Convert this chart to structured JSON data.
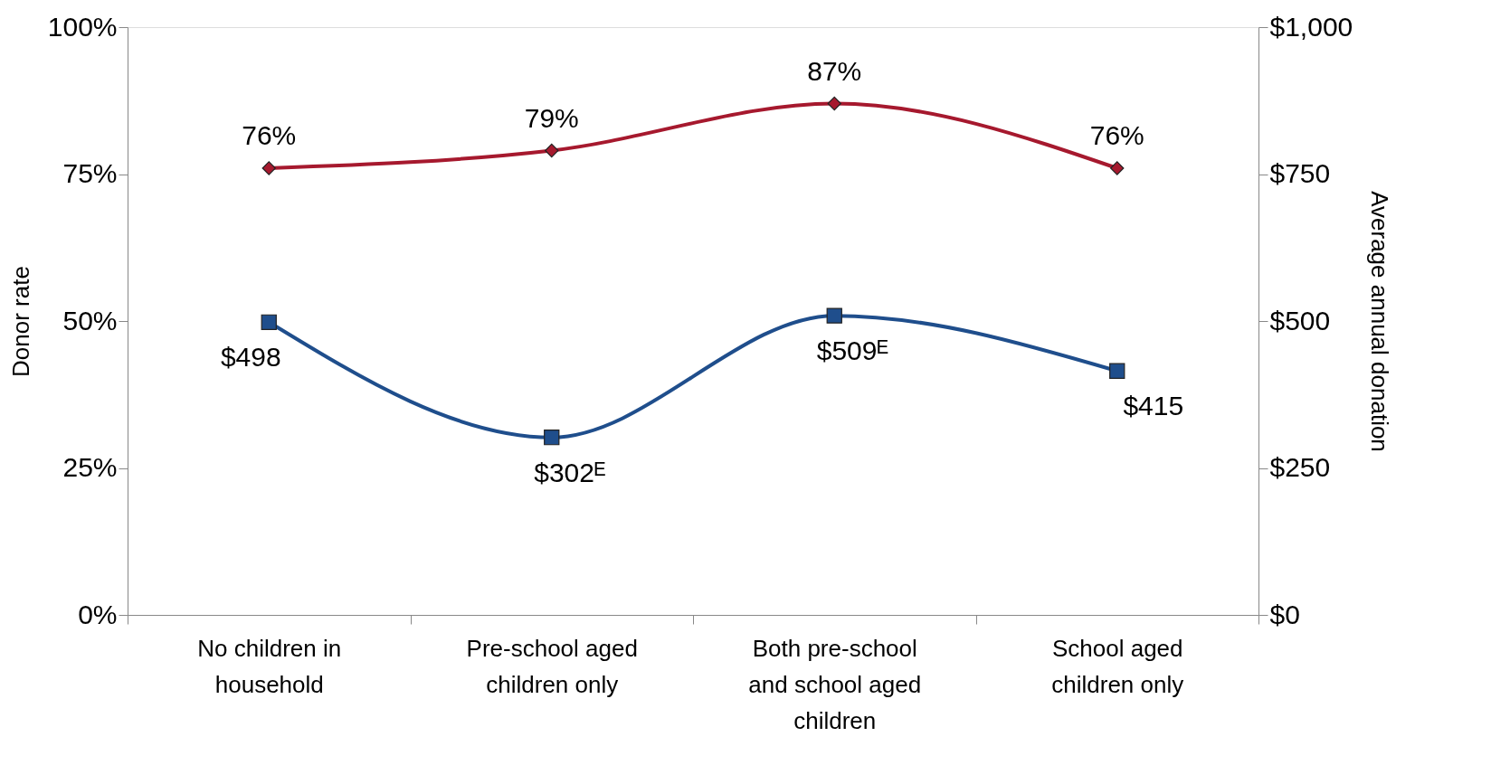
{
  "chart_data": {
    "type": "line",
    "categories": [
      "No children in household",
      "Pre-school aged children only",
      "Both pre-school and school aged children",
      "School aged children only"
    ],
    "ylabel": "Donor rate",
    "y2label": "Average annual donation",
    "ylim": [
      0,
      100
    ],
    "yticks": [
      {
        "value": 0,
        "label": "0%"
      },
      {
        "value": 25,
        "label": "25%"
      },
      {
        "value": 50,
        "label": "50%"
      },
      {
        "value": 75,
        "label": "75%"
      },
      {
        "value": 100,
        "label": "100%"
      }
    ],
    "y2lim": [
      0,
      1000
    ],
    "y2ticks": [
      {
        "value": 0,
        "label": "$0"
      },
      {
        "value": 250,
        "label": "$250"
      },
      {
        "value": 500,
        "label": "$500"
      },
      {
        "value": 750,
        "label": "$750"
      },
      {
        "value": 1000,
        "label": "$1,000"
      }
    ],
    "grid": false,
    "series": [
      {
        "color": "#a6192e",
        "marker": "diamond",
        "values": [
          76,
          79,
          87,
          76
        ],
        "value_labels": [
          "76%",
          "79%",
          "87%",
          "76%"
        ]
      },
      {
        "color": "#1f4e8c",
        "marker": "square",
        "axis": "y2",
        "values": [
          498,
          302,
          509,
          415
        ],
        "value_labels": [
          "$498",
          "$302ᴱ",
          "$509ᴱ",
          "$415"
        ]
      }
    ]
  }
}
